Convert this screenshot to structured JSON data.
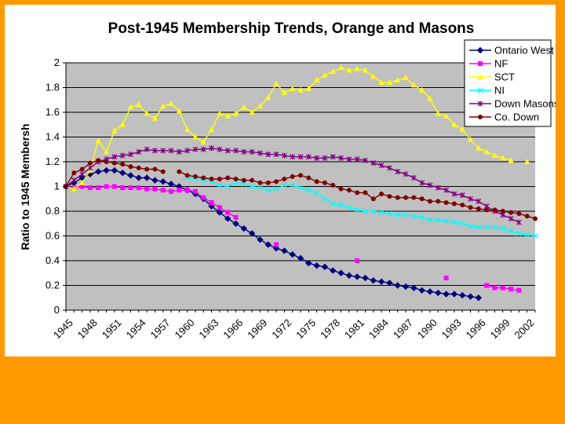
{
  "chart_data": {
    "type": "line",
    "title": "Post-1945 Membership Trends, Orange and Masons",
    "ylabel": "Ratio to 1945 Membersh",
    "xlabel": "",
    "xlim": [
      1945,
      2003
    ],
    "ylim": [
      0,
      2
    ],
    "yticks": [
      "0",
      "0.2",
      "0.4",
      "0.6",
      "0.8",
      "1",
      "1.2",
      "1.4",
      "1.6",
      "1.8",
      "2"
    ],
    "xticks": [
      "1945",
      "1948",
      "1951",
      "1954",
      "1957",
      "1960",
      "1963",
      "1966",
      "1969",
      "1972",
      "1975",
      "1978",
      "1981",
      "1984",
      "1987",
      "1990",
      "1993",
      "1996",
      "1999",
      "2002"
    ],
    "grid": true,
    "legend_position": "top-right",
    "series": [
      {
        "name": "Ontario West",
        "color": "#000080",
        "marker": "diamond",
        "x": [
          1945,
          1946,
          1947,
          1948,
          1949,
          1950,
          1951,
          1952,
          1953,
          1954,
          1955,
          1956,
          1957,
          1958,
          1959,
          1960,
          1961,
          1962,
          1963,
          1964,
          1965,
          1966,
          1967,
          1968,
          1969,
          1970,
          1971,
          1972,
          1973,
          1974,
          1975,
          1976,
          1977,
          1978,
          1979,
          1980,
          1981,
          1982,
          1983,
          1984,
          1985,
          1986,
          1987,
          1988,
          1989,
          1990,
          1991,
          1992,
          1993,
          1994,
          1995,
          1996
        ],
        "y": [
          1.0,
          1.03,
          1.07,
          1.1,
          1.12,
          1.13,
          1.13,
          1.11,
          1.09,
          1.07,
          1.07,
          1.05,
          1.04,
          1.02,
          1.0,
          0.97,
          0.94,
          0.9,
          0.84,
          0.79,
          0.74,
          0.7,
          0.66,
          0.62,
          0.57,
          0.53,
          0.5,
          0.48,
          0.45,
          0.42,
          0.38,
          0.36,
          0.35,
          0.32,
          0.3,
          0.28,
          0.27,
          0.26,
          0.24,
          0.23,
          0.22,
          0.2,
          0.19,
          0.18,
          0.16,
          0.15,
          0.14,
          0.13,
          0.13,
          0.12,
          0.11,
          0.1
        ]
      },
      {
        "name": "NF",
        "color": "#ff00ff",
        "marker": "square",
        "x": [
          1945,
          1946,
          1947,
          1948,
          1949,
          1950,
          1951,
          1952,
          1953,
          1954,
          1955,
          1956,
          1957,
          1958,
          1959,
          1960,
          1961,
          1962,
          1963,
          1964,
          1965,
          1966,
          null,
          1971,
          null,
          1981,
          null,
          1992,
          null,
          1997,
          1998,
          1999,
          2000,
          2001
        ],
        "y": [
          1.0,
          0.99,
          1.0,
          0.99,
          0.99,
          1.0,
          1.0,
          0.99,
          0.99,
          0.99,
          0.98,
          0.98,
          0.97,
          0.96,
          0.97,
          0.97,
          0.96,
          0.91,
          0.87,
          0.83,
          0.79,
          0.75,
          null,
          0.53,
          null,
          0.4,
          null,
          0.26,
          null,
          0.2,
          0.18,
          0.18,
          0.17,
          0.16
        ]
      },
      {
        "name": "SCT",
        "color": "#ffff00",
        "marker": "triangle",
        "x": [
          1945,
          1946,
          1947,
          1948,
          1949,
          1950,
          1951,
          1952,
          1953,
          1954,
          1955,
          1956,
          1957,
          1958,
          1959,
          1960,
          1961,
          1962,
          1963,
          1964,
          1965,
          1966,
          1967,
          1968,
          1969,
          1970,
          1971,
          1972,
          1973,
          1974,
          1975,
          1976,
          1977,
          1978,
          1979,
          1980,
          1981,
          1982,
          1983,
          1984,
          1985,
          1986,
          1987,
          1988,
          1989,
          1990,
          1991,
          1992,
          1993,
          1994,
          1995,
          1996,
          1997,
          1998,
          1999,
          2000,
          null,
          2002
        ],
        "y": [
          1.0,
          0.98,
          1.03,
          1.13,
          1.37,
          1.28,
          1.45,
          1.5,
          1.64,
          1.66,
          1.59,
          1.55,
          1.65,
          1.67,
          1.61,
          1.46,
          1.4,
          1.36,
          1.46,
          1.59,
          1.57,
          1.59,
          1.64,
          1.6,
          1.65,
          1.72,
          1.83,
          1.76,
          1.79,
          1.78,
          1.79,
          1.86,
          1.9,
          1.93,
          1.96,
          1.94,
          1.95,
          1.94,
          1.89,
          1.84,
          1.84,
          1.86,
          1.88,
          1.82,
          1.78,
          1.71,
          1.59,
          1.57,
          1.5,
          1.46,
          1.38,
          1.31,
          1.28,
          1.25,
          1.23,
          1.21,
          null,
          1.2
        ]
      },
      {
        "name": "NI",
        "color": "#00ffff",
        "marker": "x",
        "x": [
          1960,
          1961,
          1962,
          1963,
          1964,
          1965,
          1966,
          1967,
          1968,
          1969,
          1970,
          1971,
          1972,
          1973,
          1974,
          1975,
          1976,
          1977,
          1978,
          1979,
          1980,
          1981,
          1982,
          1983,
          1984,
          1985,
          1986,
          1987,
          1988,
          1989,
          1990,
          1991,
          1992,
          1993,
          1994,
          1995,
          1996,
          1997,
          1998,
          1999,
          2000,
          2001,
          2002,
          2003
        ],
        "y": [
          1.07,
          1.06,
          1.05,
          1.04,
          1.01,
          1.0,
          1.03,
          1.02,
          1.0,
          0.99,
          0.97,
          0.98,
          1.01,
          1.01,
          0.99,
          0.97,
          0.95,
          0.9,
          0.86,
          0.85,
          0.83,
          0.81,
          0.8,
          0.8,
          0.79,
          0.78,
          0.77,
          0.77,
          0.76,
          0.75,
          0.73,
          0.73,
          0.72,
          0.71,
          0.7,
          0.68,
          0.67,
          0.67,
          0.67,
          0.66,
          0.64,
          0.62,
          0.61,
          0.6
        ]
      },
      {
        "name": "Down Masons",
        "color": "#800080",
        "marker": "star",
        "x": [
          1945,
          1946,
          1947,
          1948,
          1949,
          1950,
          1951,
          1952,
          1953,
          1954,
          1955,
          1956,
          1957,
          1958,
          1959,
          1960,
          1961,
          1962,
          1963,
          1964,
          1965,
          1966,
          1967,
          1968,
          1969,
          1970,
          1971,
          1972,
          1973,
          1974,
          1975,
          1976,
          1977,
          1978,
          1979,
          1980,
          1981,
          1982,
          1983,
          1984,
          1985,
          1986,
          1987,
          1988,
          1989,
          1990,
          1991,
          1992,
          1993,
          1994,
          1995,
          1996,
          1997,
          1998,
          1999,
          2000,
          2001
        ],
        "y": [
          1.0,
          1.05,
          1.1,
          1.15,
          1.2,
          1.22,
          1.24,
          1.25,
          1.26,
          1.28,
          1.3,
          1.29,
          1.29,
          1.29,
          1.28,
          1.29,
          1.3,
          1.3,
          1.31,
          1.3,
          1.29,
          1.29,
          1.28,
          1.28,
          1.27,
          1.26,
          1.26,
          1.25,
          1.24,
          1.24,
          1.24,
          1.23,
          1.23,
          1.24,
          1.23,
          1.22,
          1.22,
          1.21,
          1.19,
          1.17,
          1.15,
          1.12,
          1.1,
          1.07,
          1.03,
          1.01,
          0.99,
          0.97,
          0.94,
          0.93,
          0.9,
          0.88,
          0.84,
          0.8,
          0.77,
          0.74,
          0.71
        ]
      },
      {
        "name": "Co. Down",
        "color": "#800000",
        "marker": "circle",
        "x": [
          1945,
          1946,
          1947,
          1948,
          1949,
          1950,
          1951,
          1952,
          1953,
          1954,
          1955,
          1956,
          1957,
          null,
          1959,
          1960,
          1961,
          1962,
          1963,
          1964,
          1965,
          1966,
          1967,
          1968,
          1969,
          1970,
          1971,
          1972,
          1973,
          1974,
          1975,
          1976,
          1977,
          1978,
          1979,
          1980,
          1981,
          1982,
          1983,
          1984,
          1985,
          1986,
          1987,
          1988,
          1989,
          1990,
          1991,
          1992,
          1993,
          1994,
          1995,
          1996,
          1997,
          1998,
          1999,
          2000,
          2001,
          2002,
          2003
        ],
        "y": [
          1.0,
          1.11,
          1.14,
          1.19,
          1.21,
          1.2,
          1.19,
          1.18,
          1.16,
          1.15,
          1.14,
          1.14,
          1.12,
          null,
          1.12,
          1.09,
          1.08,
          1.07,
          1.06,
          1.06,
          1.07,
          1.06,
          1.05,
          1.05,
          1.03,
          1.03,
          1.04,
          1.06,
          1.08,
          1.09,
          1.07,
          1.04,
          1.03,
          1.01,
          0.98,
          0.97,
          0.95,
          0.95,
          0.9,
          0.94,
          0.92,
          0.91,
          0.91,
          0.91,
          0.9,
          0.88,
          0.88,
          0.87,
          0.86,
          0.85,
          0.83,
          0.82,
          0.81,
          0.81,
          0.8,
          0.79,
          0.78,
          0.76,
          0.74
        ]
      }
    ]
  }
}
